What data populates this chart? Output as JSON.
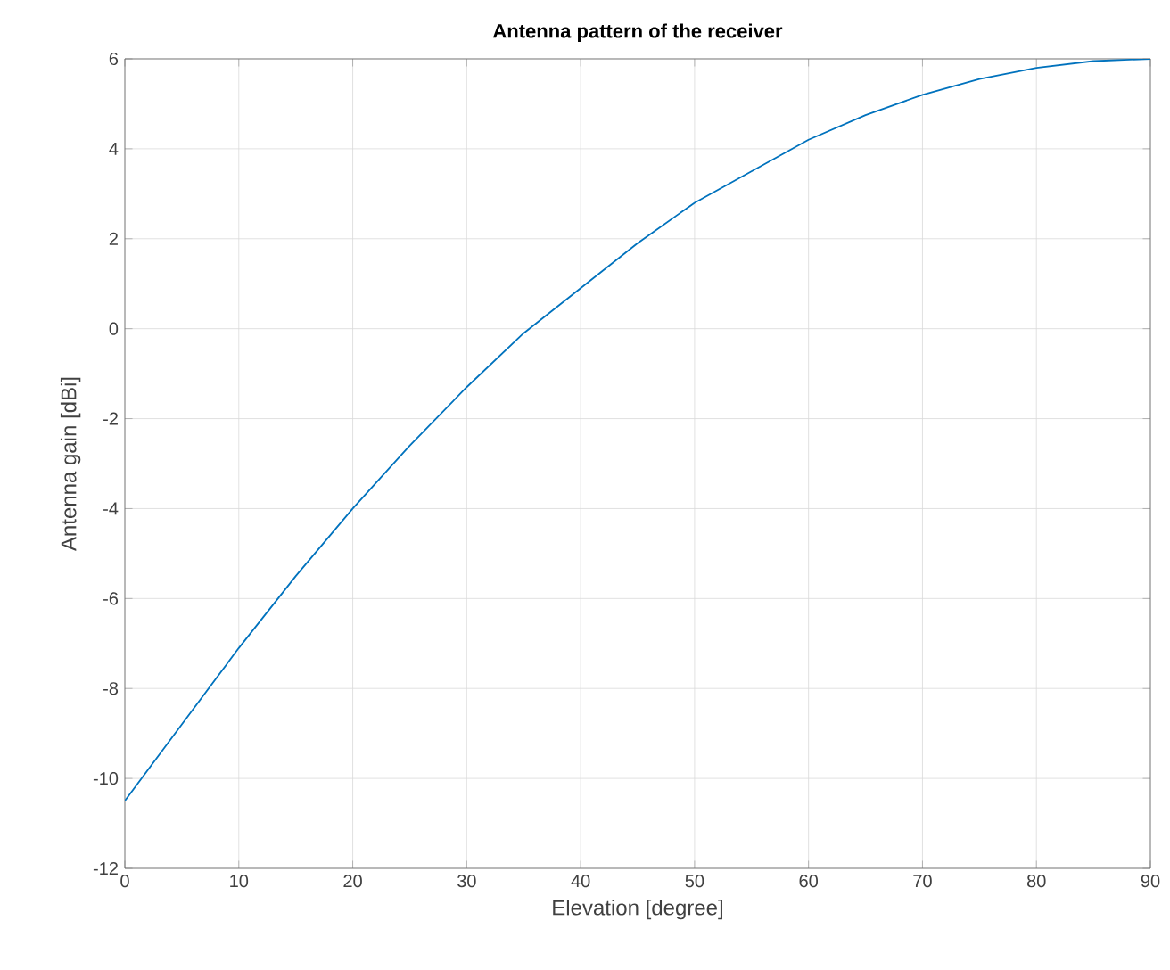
{
  "chart_data": {
    "type": "line",
    "title": "Antenna pattern of the receiver",
    "xlabel": "Elevation [degree]",
    "ylabel": "Antenna gain [dBi]",
    "x": [
      0,
      5,
      10,
      15,
      20,
      25,
      30,
      35,
      40,
      45,
      50,
      55,
      60,
      65,
      70,
      75,
      80,
      85,
      90
    ],
    "series": [
      {
        "color": "#0072bd",
        "values": [
          -10.5,
          -8.8,
          -7.1,
          -5.5,
          -4.0,
          -2.6,
          -1.3,
          -0.1,
          0.9,
          1.9,
          2.8,
          3.5,
          4.2,
          4.75,
          5.2,
          5.55,
          5.8,
          5.95,
          6.0
        ]
      }
    ],
    "xlim": [
      0,
      90
    ],
    "ylim": [
      -12,
      6
    ],
    "xticks": [
      0,
      10,
      20,
      30,
      40,
      50,
      60,
      70,
      80,
      90
    ],
    "yticks": [
      -12,
      -10,
      -8,
      -6,
      -4,
      -2,
      0,
      2,
      4,
      6
    ],
    "grid": true,
    "marker": "none",
    "line_style": "solid"
  }
}
